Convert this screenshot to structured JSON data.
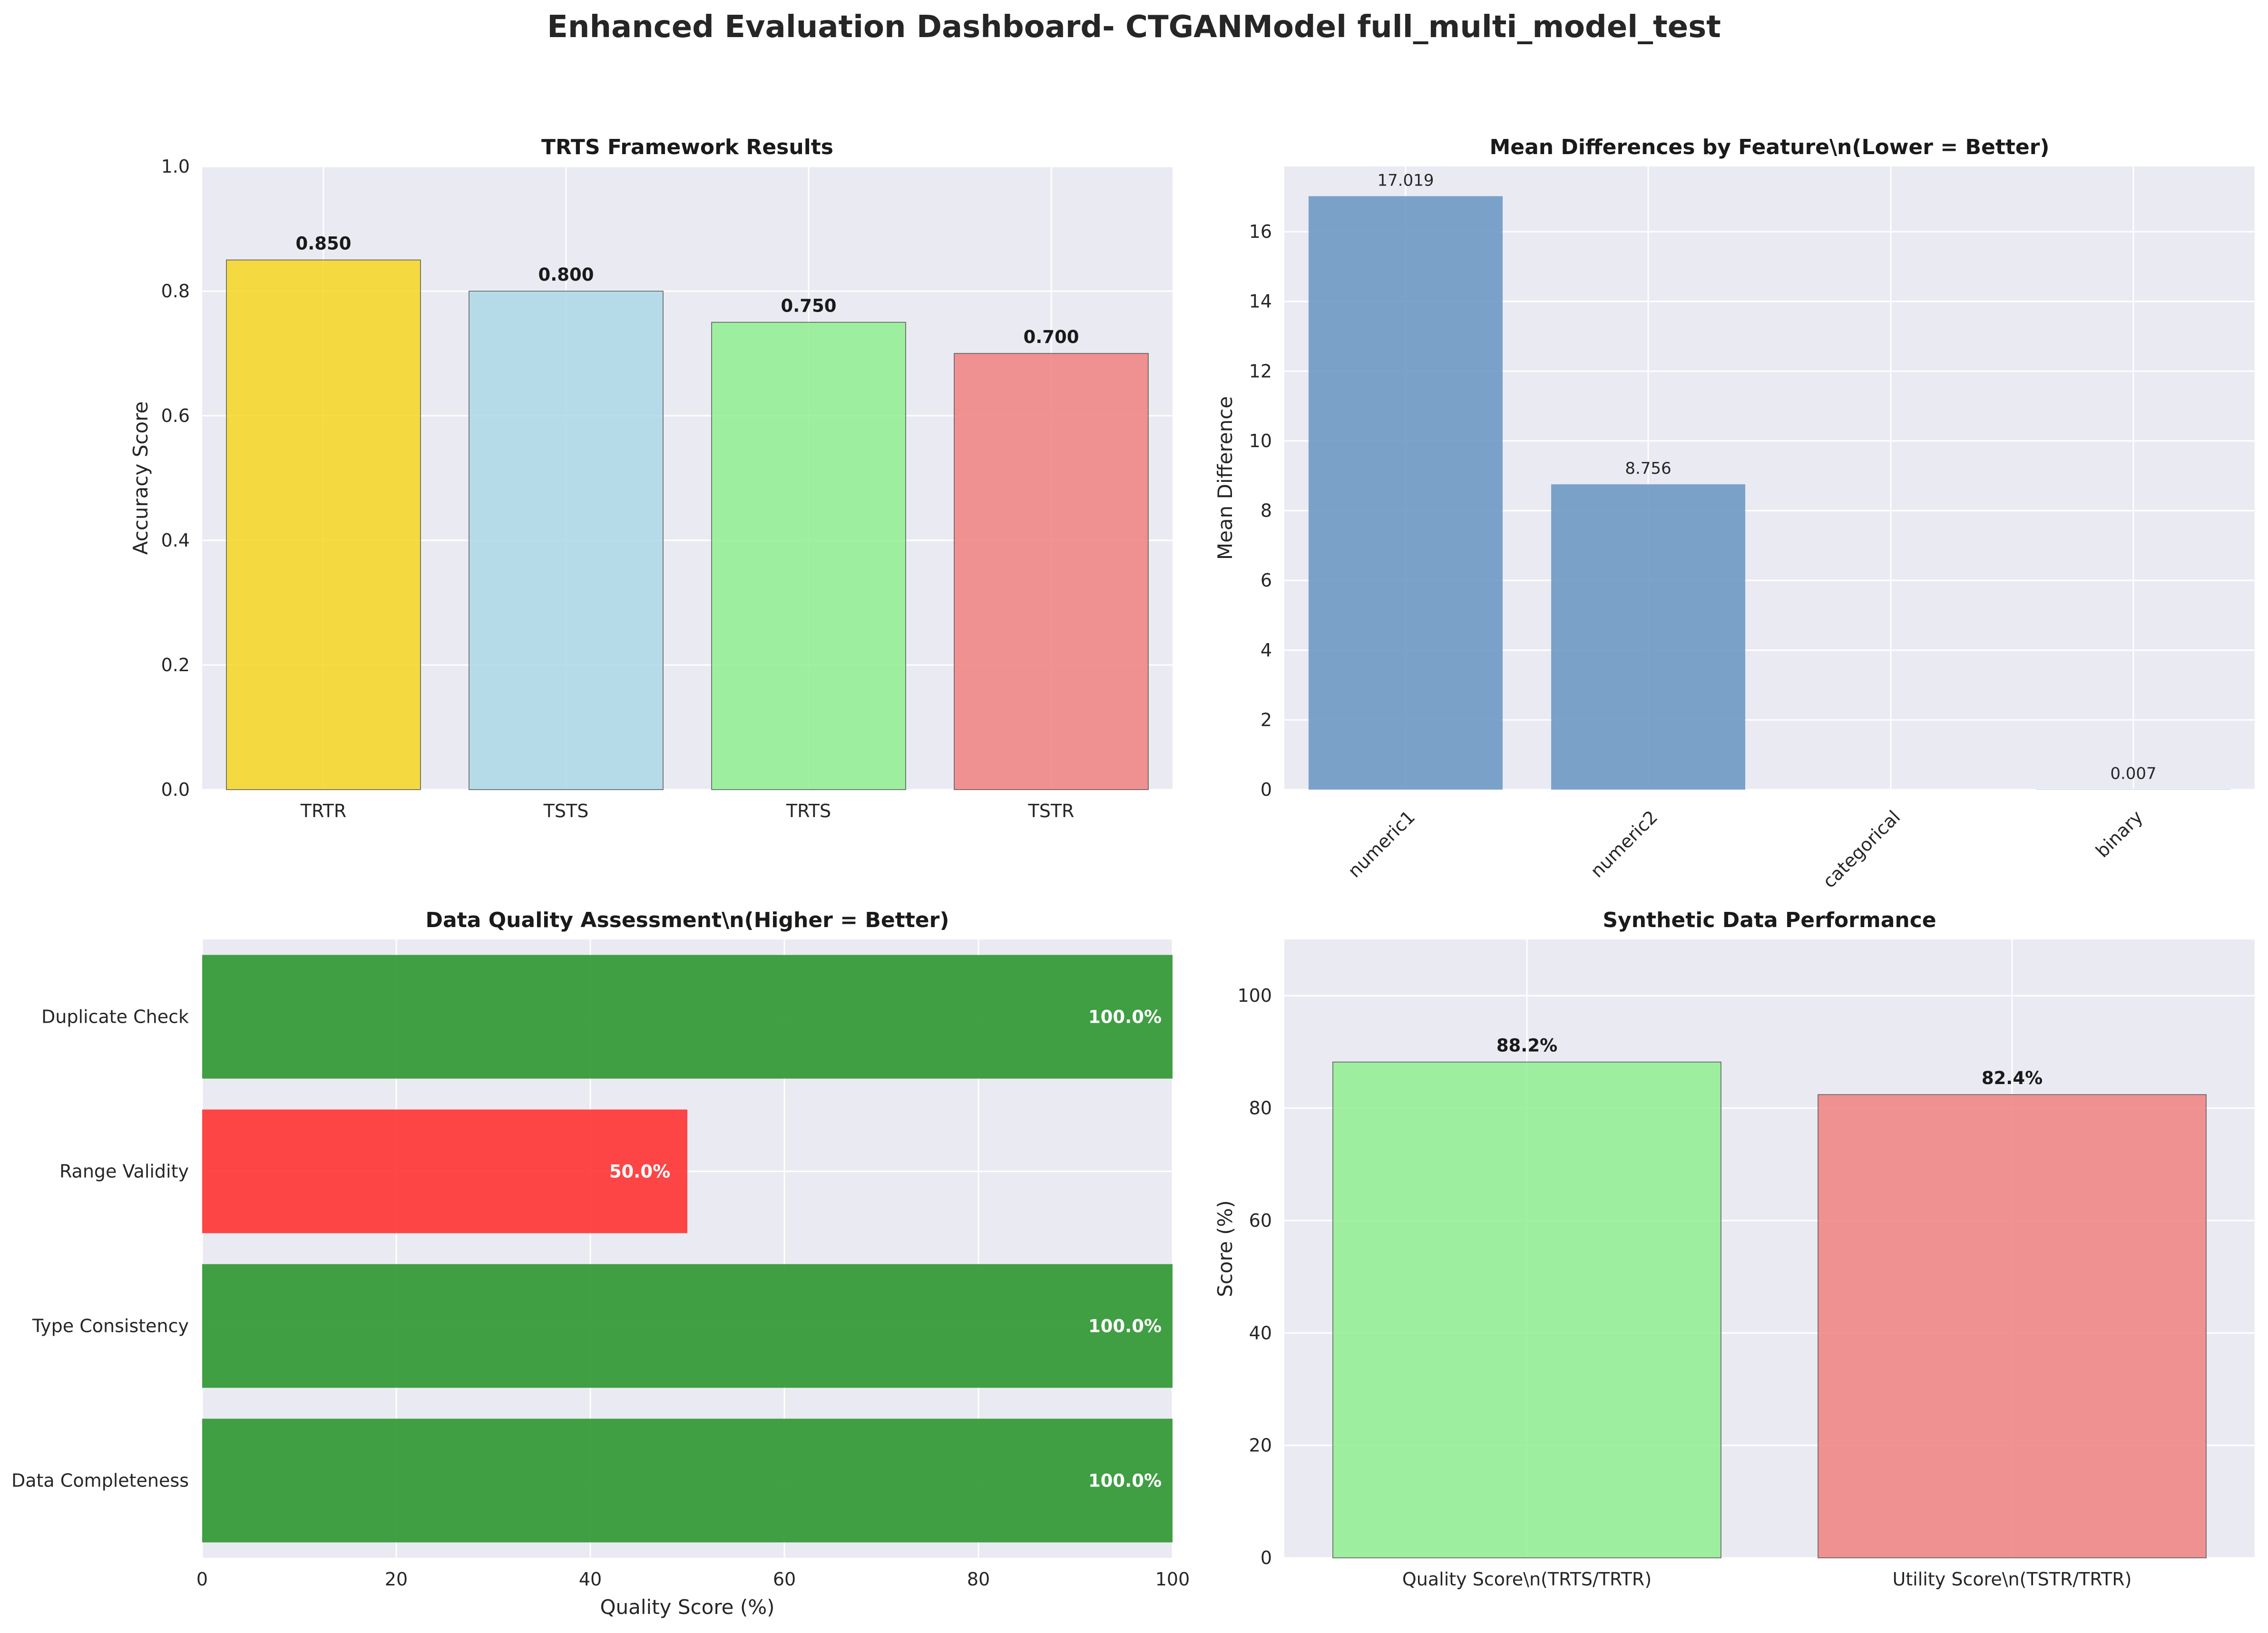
{
  "title": "Enhanced Evaluation Dashboard- CTGANModel full_multi_model_test",
  "chart_data": [
    {
      "type": "bar",
      "title": "TRTS Framework Results",
      "xlabel": "",
      "ylabel": "Accuracy Score",
      "ylim": [
        0,
        1.0
      ],
      "yticks": [
        "0.0",
        "0.2",
        "0.4",
        "0.6",
        "0.8",
        "1.0"
      ],
      "categories": [
        "TRTR",
        "TSTS",
        "TRTS",
        "TSTR"
      ],
      "values": [
        0.85,
        0.8,
        0.75,
        0.7
      ],
      "value_labels": [
        "0.850",
        "0.800",
        "0.750",
        "0.700"
      ],
      "colors": [
        "#f7d622",
        "#add8e6",
        "#90ee90",
        "#f08080"
      ],
      "grid": true
    },
    {
      "type": "bar",
      "title": "Mean Differences by Feature\\n(Lower = Better)",
      "xlabel": "",
      "ylabel": "Mean Difference",
      "ylim": [
        0,
        17.87
      ],
      "yticks": [
        "0",
        "2",
        "4",
        "6",
        "8",
        "10",
        "12",
        "14",
        "16"
      ],
      "categories": [
        "numeric1",
        "numeric2",
        "categorical",
        "binary"
      ],
      "values": [
        17.019,
        8.756,
        0,
        0.007
      ],
      "value_labels": [
        "17.019",
        "8.756",
        "",
        "0.007"
      ],
      "colors": [
        "#6e9ac4",
        "#6e9ac4",
        "#6e9ac4",
        "#6e9ac4"
      ],
      "grid": true
    },
    {
      "type": "barh",
      "title": "Data Quality Assessment\\n(Higher = Better)",
      "xlabel": "Quality Score (%)",
      "ylabel": "",
      "xlim": [
        0,
        100
      ],
      "xticks": [
        "0",
        "20",
        "40",
        "60",
        "80",
        "100"
      ],
      "categories": [
        "Data Completeness",
        "Type Consistency",
        "Range Validity",
        "Duplicate Check"
      ],
      "values": [
        100,
        100,
        50,
        100
      ],
      "value_labels": [
        "100.0%",
        "100.0%",
        "50.0%",
        "100.0%"
      ],
      "colors": [
        "#2e9630",
        "#2e9630",
        "#ff3333",
        "#2e9630"
      ],
      "grid": true
    },
    {
      "type": "bar",
      "title": "Synthetic Data Performance",
      "xlabel": "",
      "ylabel": "Score (%)",
      "ylim": [
        0,
        110
      ],
      "yticks": [
        "0",
        "20",
        "40",
        "60",
        "80",
        "100"
      ],
      "categories": [
        "Quality Score\\n(TRTS/TRTR)",
        "Utility Score\\n(TSTR/TRTR)"
      ],
      "values": [
        88.2,
        82.4
      ],
      "value_labels": [
        "88.2%",
        "82.4%"
      ],
      "colors": [
        "#90ee90",
        "#f08080"
      ],
      "grid": true
    }
  ]
}
